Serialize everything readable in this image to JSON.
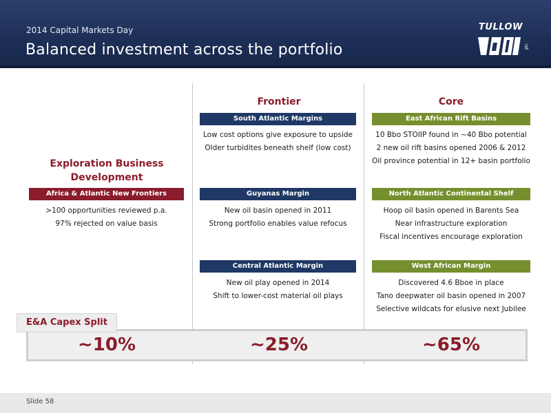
{
  "header": {
    "subtitle": "2014 Capital Markets Day",
    "title": "Balanced investment across the portfolio",
    "logo_text": "TULLOW",
    "logo_small": "plc"
  },
  "exploration": {
    "heading": "Exploration Business Development",
    "band": "Africa & Atlantic New Frontiers",
    "lines": [
      ">100 opportunities reviewed p.a.",
      "97% rejected on value basis"
    ]
  },
  "frontier": {
    "heading": "Frontier",
    "sections": [
      {
        "band": "South Atlantic Margins",
        "lines": [
          "Low cost options give exposure to upside",
          "Older turbidites beneath shelf (low cost)"
        ]
      },
      {
        "band": "Guyanas Margin",
        "lines": [
          "New oil basin opened in 2011",
          "Strong portfolio enables value refocus"
        ]
      },
      {
        "band": "Central Atlantic Margin",
        "lines": [
          "New oil play opened in 2014",
          "Shift to lower-cost material oil plays"
        ]
      }
    ]
  },
  "core": {
    "heading": "Core",
    "sections": [
      {
        "band": "East African Rift Basins",
        "lines": [
          "10 Bbo STOIIP found in ~40 Bbo potential",
          "2 new oil rift basins opened 2006 & 2012",
          "Oil province potential in 12+ basin portfolio"
        ]
      },
      {
        "band": "North Atlantic Continental Shelf",
        "lines": [
          "Hoop oil basin opened in Barents Sea",
          "Near infrastructure exploration",
          "Fiscal incentives encourage exploration"
        ]
      },
      {
        "band": "West African Margin",
        "lines": [
          "Discovered 4.6 Bboe in place",
          "Tano deepwater oil basin opened in 2007",
          "Selective wildcats for elusive next Jubilee"
        ]
      }
    ]
  },
  "capex": {
    "label": "E&A Capex Split",
    "values": [
      "~10%",
      "~25%",
      "~65%"
    ]
  },
  "footer": {
    "slide": "Slide 58"
  },
  "colors": {
    "navy": "#1f3865",
    "maroon": "#8a1c2b",
    "olive": "#768f2e"
  }
}
